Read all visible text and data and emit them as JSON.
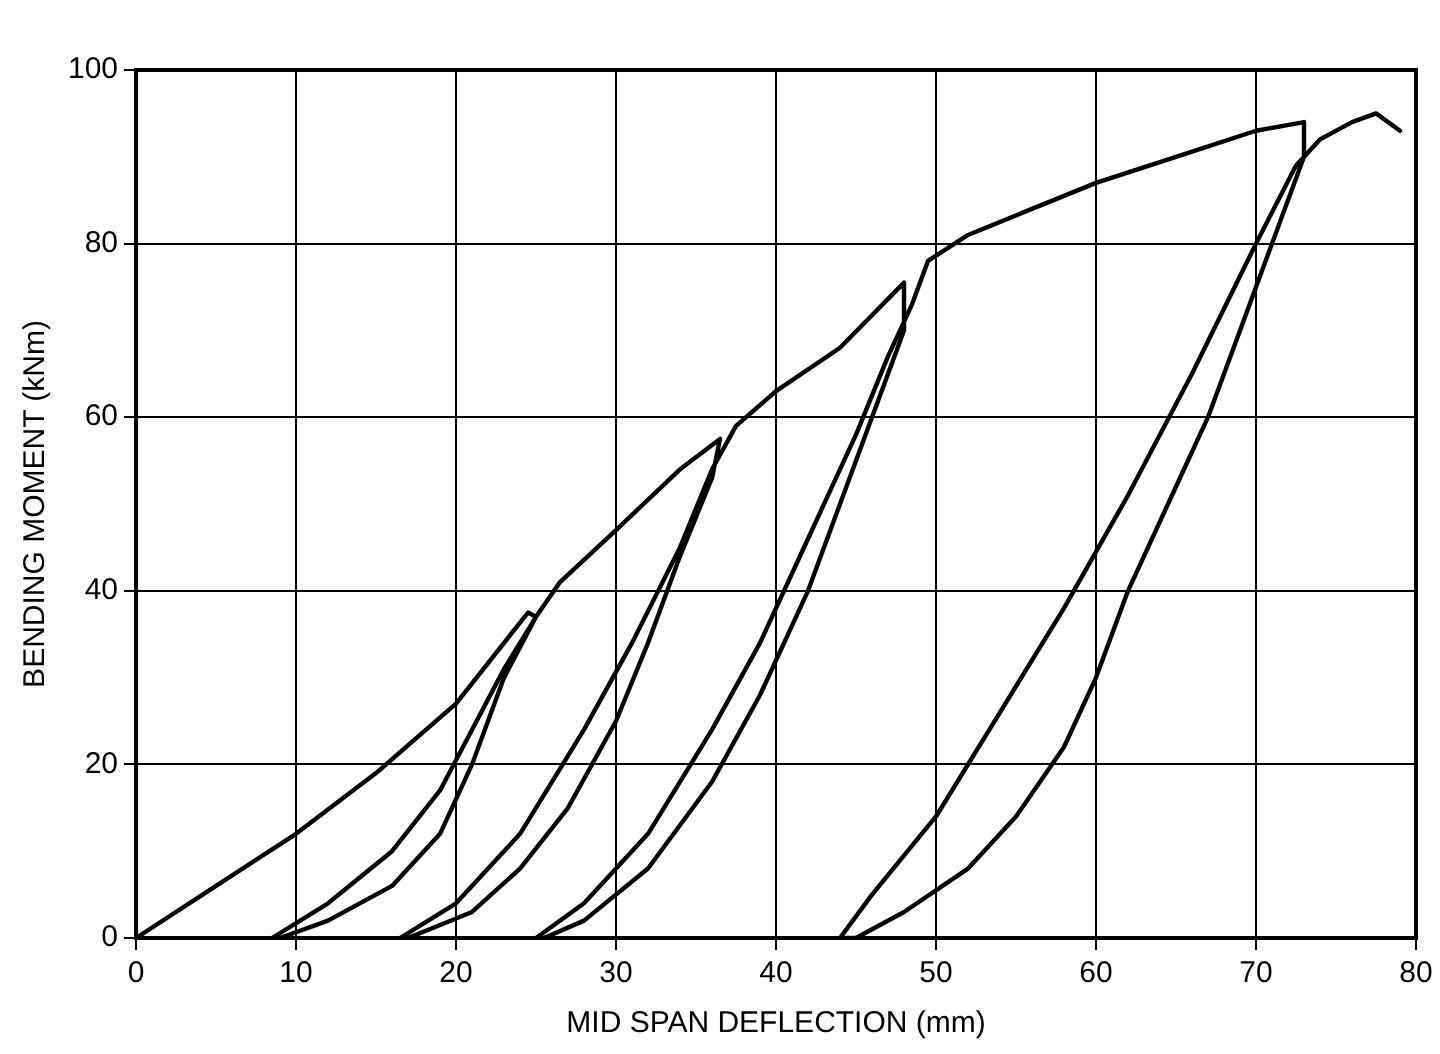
{
  "chart_data": {
    "type": "line",
    "xlabel": "MID SPAN DEFLECTION (mm)",
    "ylabel": "BENDING MOMENT (kNm)",
    "series": [
      {
        "color": "#000000",
        "x": [
          0,
          5,
          10,
          15,
          20,
          24.5,
          25,
          23,
          21,
          19,
          16,
          12,
          9,
          8.5,
          12,
          16,
          19,
          21,
          23,
          25,
          26.5,
          30,
          34,
          36.5,
          36,
          34,
          32,
          30,
          27,
          24,
          21,
          17,
          16.5,
          20,
          24,
          28,
          31,
          34,
          36,
          37.5,
          40,
          44,
          48,
          48,
          46,
          44,
          42,
          39,
          36,
          32,
          28,
          25.5,
          25,
          28,
          32,
          36,
          39,
          42,
          45,
          47,
          48.5,
          49.5,
          52,
          56,
          60,
          65,
          70,
          73,
          73,
          71,
          69,
          67,
          64.5,
          62,
          60,
          58,
          55,
          52,
          48,
          45,
          44,
          46,
          50,
          54,
          58,
          62,
          66,
          70,
          72.5,
          74,
          76,
          77.5,
          79
        ],
        "values": [
          0,
          6,
          12,
          19,
          27,
          37.5,
          37,
          30,
          20,
          12,
          6,
          2,
          0,
          0,
          4,
          10,
          17,
          24,
          31,
          37,
          41,
          47,
          54,
          57.5,
          53,
          44,
          34,
          25,
          15,
          8,
          3,
          0,
          0,
          4,
          12,
          24,
          34,
          45,
          54,
          59,
          63,
          68,
          75.5,
          70,
          60,
          50,
          40,
          28,
          18,
          8,
          2,
          0,
          0,
          4,
          12,
          24,
          34,
          46,
          58,
          67,
          73,
          78,
          81,
          84,
          87,
          90,
          93,
          94,
          90,
          80,
          70,
          60,
          50,
          40,
          30,
          22,
          14,
          8,
          3,
          0,
          0,
          5,
          14,
          26,
          38,
          51,
          65,
          80,
          89,
          92,
          94,
          95,
          93
        ]
      }
    ],
    "xlim": [
      0,
      80
    ],
    "xticks": [
      0,
      10,
      20,
      30,
      40,
      50,
      60,
      70,
      80
    ],
    "ylim": [
      0,
      100
    ],
    "yticks": [
      0,
      20,
      40,
      60,
      80,
      100
    ],
    "grid": true,
    "marker": "none",
    "line_style": "solid"
  }
}
